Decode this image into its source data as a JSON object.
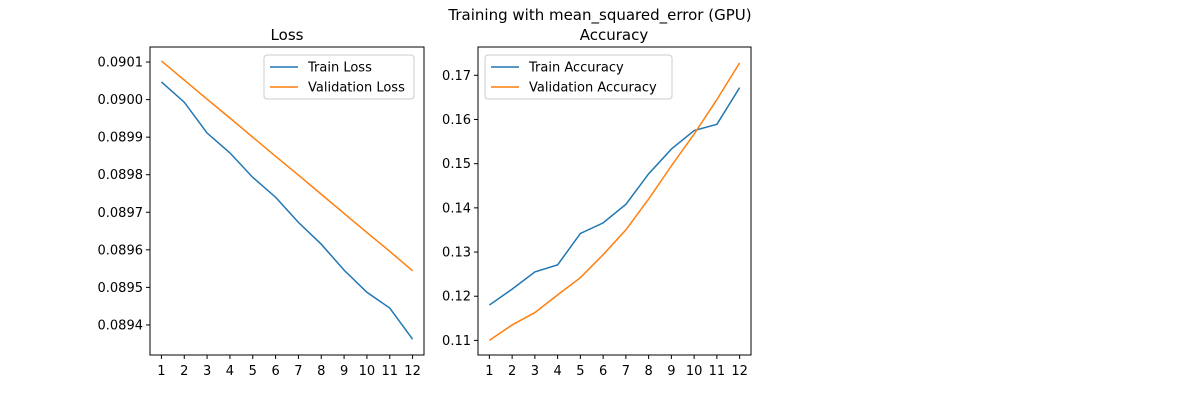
{
  "figure": {
    "title": "Training with mean_squared_error (GPU)"
  },
  "colors": {
    "train": "#1f77b4",
    "validation": "#ff7f0e"
  },
  "chart_data": [
    {
      "type": "line",
      "title": "Loss",
      "xlabel": "",
      "ylabel": "",
      "legend_placement": "upper-right",
      "x": [
        1,
        2,
        3,
        4,
        5,
        6,
        7,
        8,
        9,
        10,
        11,
        12
      ],
      "xlim": [
        0.5,
        12.5
      ],
      "ylim": [
        0.08932,
        0.09014
      ],
      "yticks": [
        0.0894,
        0.0895,
        0.0896,
        0.0897,
        0.0898,
        0.0899,
        0.09,
        0.0901
      ],
      "ytick_labels": [
        "0.0894",
        "0.0895",
        "0.0896",
        "0.0897",
        "0.0898",
        "0.0899",
        "0.0900",
        "0.0901"
      ],
      "series": [
        {
          "name": "Train Loss",
          "color_key": "train",
          "values": [
            0.090047,
            0.089993,
            0.089911,
            0.089858,
            0.089793,
            0.08974,
            0.089673,
            0.089615,
            0.089546,
            0.089487,
            0.089445,
            0.089362
          ]
        },
        {
          "name": "Validation Loss",
          "color_key": "validation",
          "values": [
            0.090103,
            0.090052,
            0.090001,
            0.089951,
            0.0899,
            0.089849,
            0.089799,
            0.089748,
            0.089697,
            0.089646,
            0.089596,
            0.089544
          ]
        }
      ]
    },
    {
      "type": "line",
      "title": "Accuracy",
      "xlabel": "",
      "ylabel": "",
      "legend_placement": "upper-left",
      "x": [
        1,
        2,
        3,
        4,
        5,
        6,
        7,
        8,
        9,
        10,
        11,
        12
      ],
      "xlim": [
        0.5,
        12.5
      ],
      "ylim": [
        0.1067,
        0.1764
      ],
      "yticks": [
        0.11,
        0.12,
        0.13,
        0.14,
        0.15,
        0.16,
        0.17
      ],
      "ytick_labels": [
        "0.11",
        "0.12",
        "0.13",
        "0.14",
        "0.15",
        "0.16",
        "0.17"
      ],
      "series": [
        {
          "name": "Train Accuracy",
          "color_key": "train",
          "values": [
            0.118,
            0.1216,
            0.1255,
            0.1271,
            0.1342,
            0.1366,
            0.1408,
            0.1477,
            0.1533,
            0.1575,
            0.1589,
            0.1672
          ]
        },
        {
          "name": "Validation Accuracy",
          "color_key": "validation",
          "values": [
            0.11,
            0.1135,
            0.1163,
            0.1203,
            0.1242,
            0.1294,
            0.135,
            0.142,
            0.1495,
            0.1567,
            0.1645,
            0.1728
          ]
        }
      ]
    }
  ]
}
